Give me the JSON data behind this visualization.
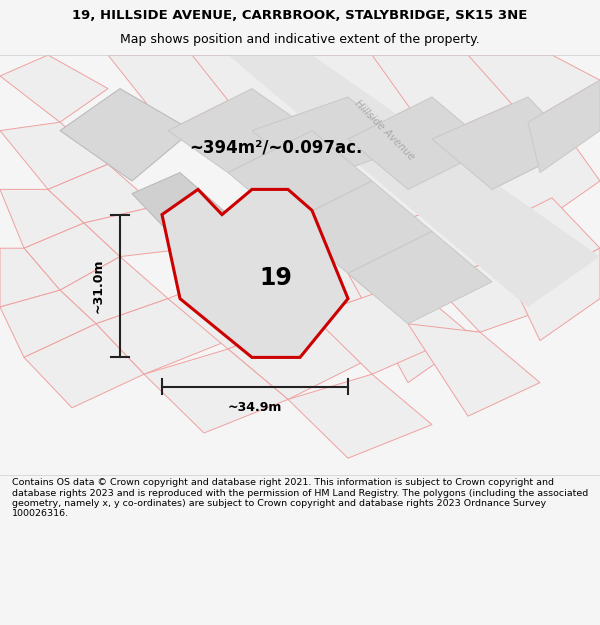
{
  "title": "19, HILLSIDE AVENUE, CARRBROOK, STALYBRIDGE, SK15 3NE",
  "subtitle": "Map shows position and indicative extent of the property.",
  "footer": "Contains OS data © Crown copyright and database right 2021. This information is subject to Crown copyright and database rights 2023 and is reproduced with the permission of HM Land Registry. The polygons (including the associated geometry, namely x, y co-ordinates) are subject to Crown copyright and database rights 2023 Ordnance Survey 100026316.",
  "area_label": "~394m²/~0.097ac.",
  "width_label": "~34.9m",
  "height_label": "~31.0m",
  "property_number": "19",
  "background_color": "#f5f5f5",
  "map_bg": "#ffffff",
  "property_fill": "#e0e0e0",
  "property_edge": "#cc0000",
  "bg_polygon_fill": "#e8e8e8",
  "bg_polygon_edge": "#f0a0a0",
  "dark_polygon_fill": "#d4d4d4",
  "dark_polygon_edge": "#c0c0c0",
  "road_label_color": "#aaaaaa",
  "dim_line_color": "#222222",
  "title_fontsize": 9.5,
  "subtitle_fontsize": 9,
  "footer_fontsize": 6.8
}
